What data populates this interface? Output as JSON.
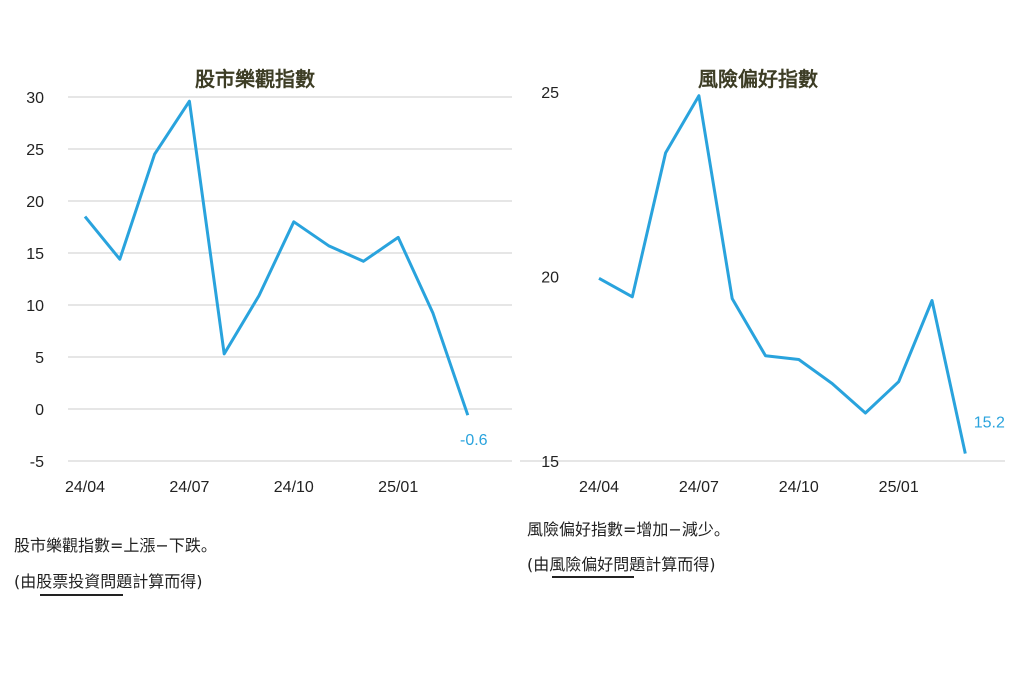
{
  "colors": {
    "line": "#29a3dd",
    "grid": "#cccccc",
    "title": "#3d3d25"
  },
  "chart_data": [
    {
      "type": "line",
      "title": "股市樂觀指數",
      "xlabel": "",
      "ylabel": "",
      "x_ticks": [
        "24/04",
        "24/07",
        "24/10",
        "25/01"
      ],
      "y_ticks": [
        30,
        25,
        20,
        15,
        10,
        5,
        0,
        -5
      ],
      "ylim": [
        -5,
        30
      ],
      "grid": true,
      "legend": "none",
      "series": [
        {
          "values": [
            18.5,
            14.4,
            24.5,
            29.6,
            5.3,
            10.9,
            18.0,
            15.7,
            14.2,
            16.5,
            9.2,
            -0.6
          ]
        }
      ],
      "last_value_label": "-0.6"
    },
    {
      "type": "line",
      "title": "風險偏好指數",
      "xlabel": "",
      "ylabel": "",
      "x_ticks": [
        "24/04",
        "24/07",
        "24/10",
        "25/01"
      ],
      "y_ticks": [
        25,
        20,
        15
      ],
      "ylim": [
        15,
        25
      ],
      "grid": false,
      "legend": "none",
      "series": [
        {
          "values": [
            19.95,
            19.45,
            23.35,
            24.9,
            19.4,
            17.85,
            17.75,
            17.1,
            16.3,
            17.15,
            19.35,
            15.2
          ]
        }
      ],
      "last_value_label": "15.2"
    }
  ],
  "notes": {
    "left_formula": "股市樂觀指數=上漲−下跌。",
    "left_source": "(由股票投資問題計算而得)",
    "right_formula": "風險偏好指數=增加−減少。",
    "right_source": "(由風險偏好問題計算而得)"
  }
}
